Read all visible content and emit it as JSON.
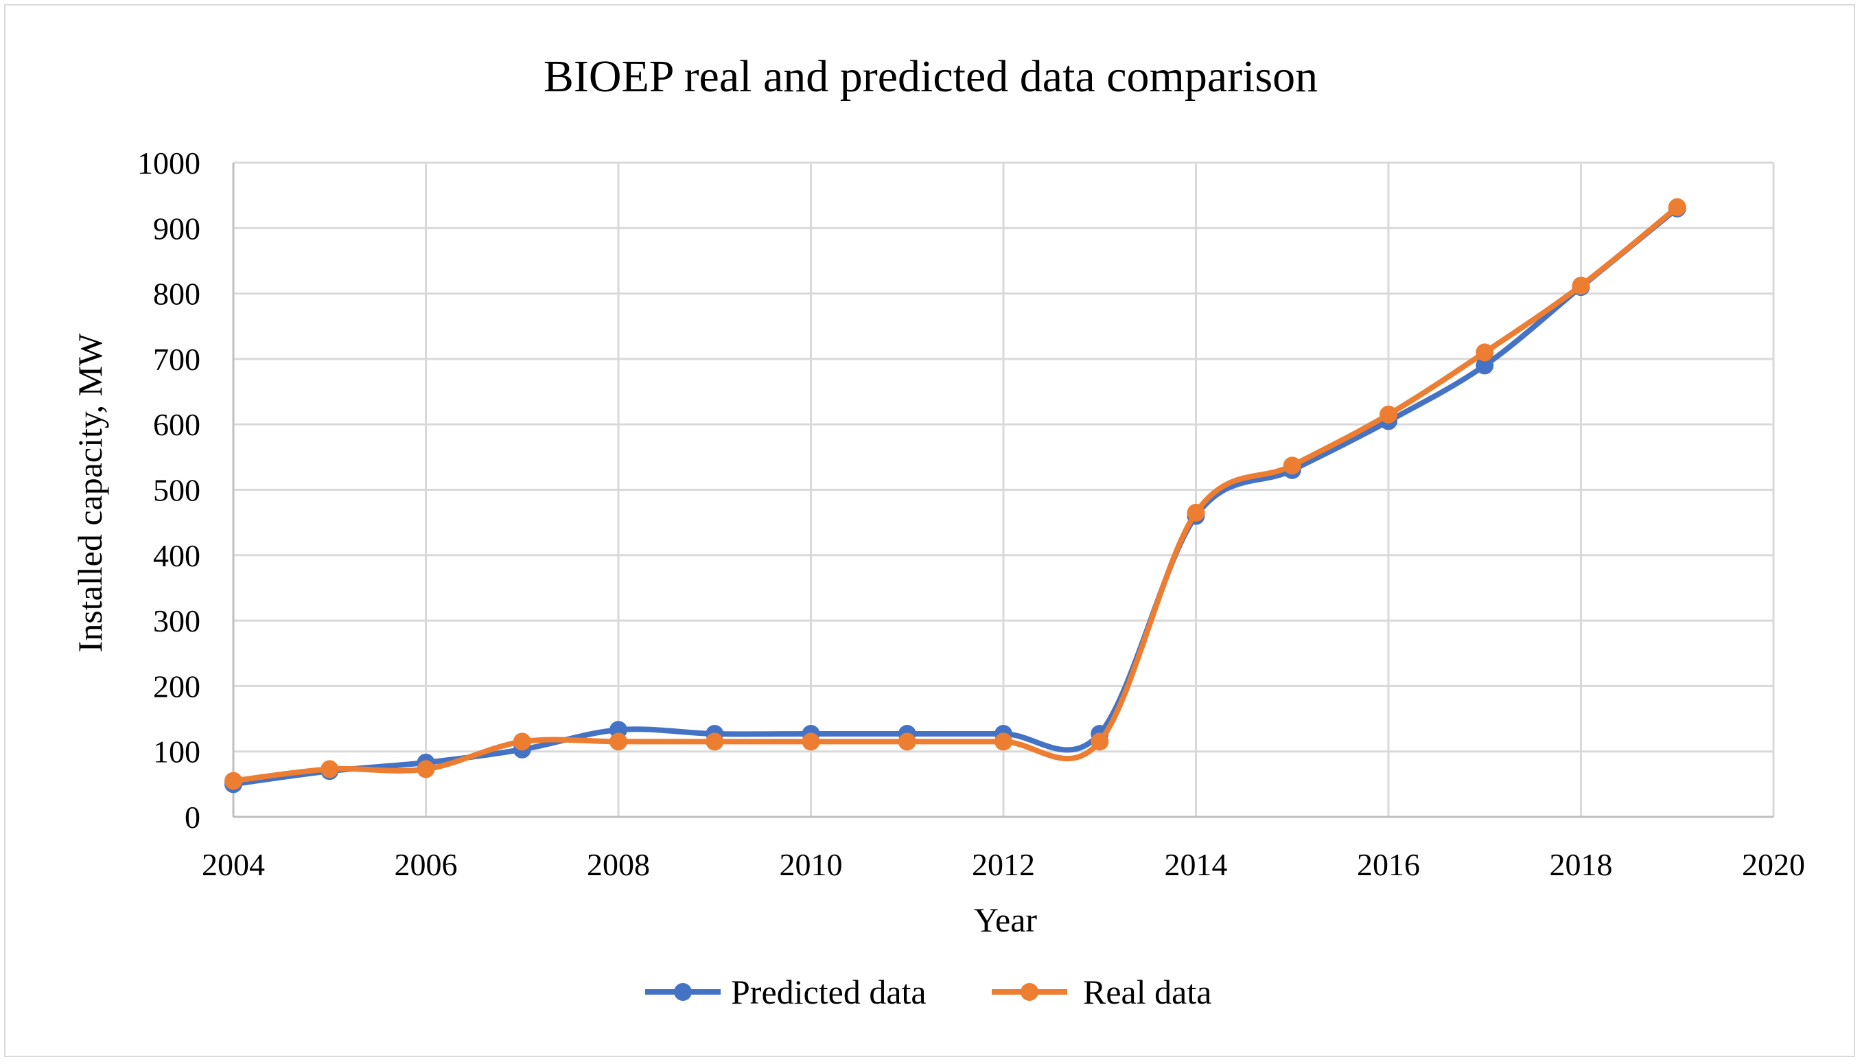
{
  "chart_data": {
    "type": "line",
    "title": "BIOEP real and predicted data comparison",
    "xlabel": "Year",
    "ylabel": "Installed capacity, MW",
    "xlim": [
      2004,
      2020
    ],
    "ylim": [
      0,
      1000
    ],
    "x_ticks": [
      2004,
      2006,
      2008,
      2010,
      2012,
      2014,
      2016,
      2018,
      2020
    ],
    "y_ticks": [
      0,
      100,
      200,
      300,
      400,
      500,
      600,
      700,
      800,
      900,
      1000
    ],
    "grid": true,
    "legend_position": "bottom",
    "series": [
      {
        "name": "Predicted data",
        "color": "#4472c4",
        "x": [
          2004,
          2005,
          2006,
          2007,
          2008,
          2009,
          2010,
          2011,
          2012,
          2013,
          2014,
          2015,
          2016,
          2017,
          2018,
          2019
        ],
        "y": [
          50,
          70,
          83,
          103,
          133,
          127,
          127,
          127,
          127,
          127,
          460,
          530,
          605,
          690,
          810,
          930
        ]
      },
      {
        "name": "Real data",
        "color": "#ed7d31",
        "x": [
          2004,
          2005,
          2006,
          2007,
          2008,
          2009,
          2010,
          2011,
          2012,
          2013,
          2014,
          2015,
          2016,
          2017,
          2018,
          2019
        ],
        "y": [
          55,
          73,
          73,
          115,
          115,
          115,
          115,
          115,
          115,
          115,
          465,
          537,
          615,
          710,
          812,
          932
        ]
      }
    ]
  }
}
